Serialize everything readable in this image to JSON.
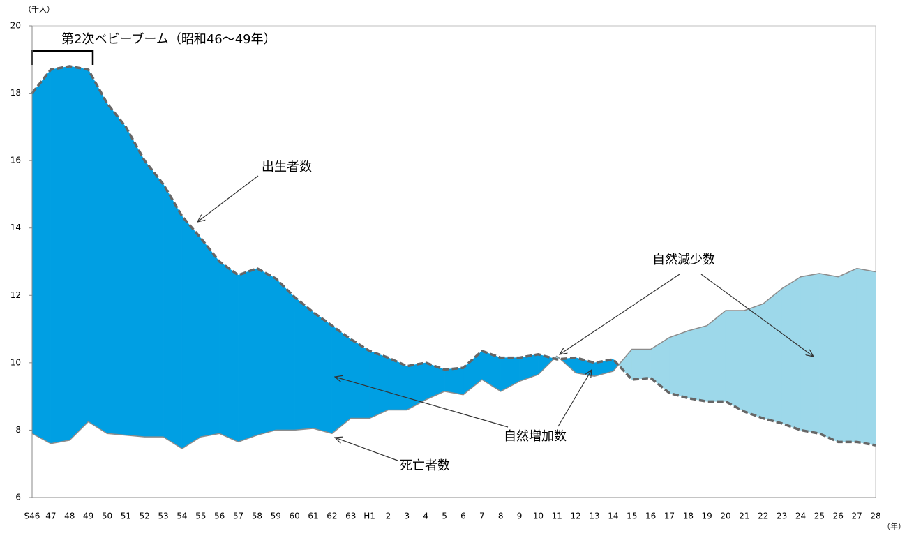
{
  "chart_data": {
    "type": "area-difference",
    "y_unit": "（千人）",
    "x_unit": "（年）",
    "categories": [
      "S46",
      "47",
      "48",
      "49",
      "50",
      "51",
      "52",
      "53",
      "54",
      "55",
      "56",
      "57",
      "58",
      "59",
      "60",
      "61",
      "62",
      "63",
      "H1",
      "2",
      "3",
      "4",
      "5",
      "6",
      "7",
      "8",
      "9",
      "10",
      "11",
      "12",
      "13",
      "14",
      "15",
      "16",
      "17",
      "18",
      "19",
      "20",
      "21",
      "22",
      "23",
      "24",
      "25",
      "26",
      "27",
      "28"
    ],
    "series": [
      {
        "name": "出生者数",
        "color": "#666666",
        "dashed": true,
        "values": [
          18.0,
          18.7,
          18.8,
          18.7,
          17.7,
          17.0,
          16.0,
          15.3,
          14.35,
          13.7,
          13.0,
          12.6,
          12.8,
          12.5,
          11.95,
          11.5,
          11.1,
          10.7,
          10.35,
          10.15,
          9.9,
          10.0,
          9.8,
          9.85,
          10.35,
          10.15,
          10.15,
          10.25,
          10.1,
          10.15,
          10.0,
          10.1,
          9.5,
          9.55,
          9.1,
          8.95,
          8.85,
          8.85,
          8.55,
          8.35,
          8.2,
          8.0,
          7.9,
          7.65,
          7.65,
          7.55
        ]
      },
      {
        "name": "死亡者数",
        "color": "#8c8c8c",
        "dashed": false,
        "values": [
          7.9,
          7.6,
          7.7,
          8.25,
          7.9,
          7.85,
          7.8,
          7.8,
          7.45,
          7.8,
          7.9,
          7.65,
          7.85,
          8.0,
          8.0,
          8.05,
          7.9,
          8.35,
          8.35,
          8.6,
          8.6,
          8.9,
          9.15,
          9.05,
          9.5,
          9.15,
          9.45,
          9.65,
          10.2,
          9.7,
          9.6,
          9.75,
          10.4,
          10.4,
          10.75,
          10.95,
          11.1,
          11.55,
          11.55,
          11.75,
          12.2,
          12.55,
          12.65,
          12.55,
          12.8,
          12.7
        ]
      }
    ],
    "increase_color": "#009fe3",
    "decrease_color": "#9dd8ea",
    "ylim": [
      6,
      20
    ],
    "yticks": [
      6,
      8,
      10,
      12,
      14,
      16,
      18,
      20
    ],
    "annotations": [
      "第2次ベビーブーム（昭和46～49年）",
      "自然増加数",
      "自然減少数"
    ]
  }
}
